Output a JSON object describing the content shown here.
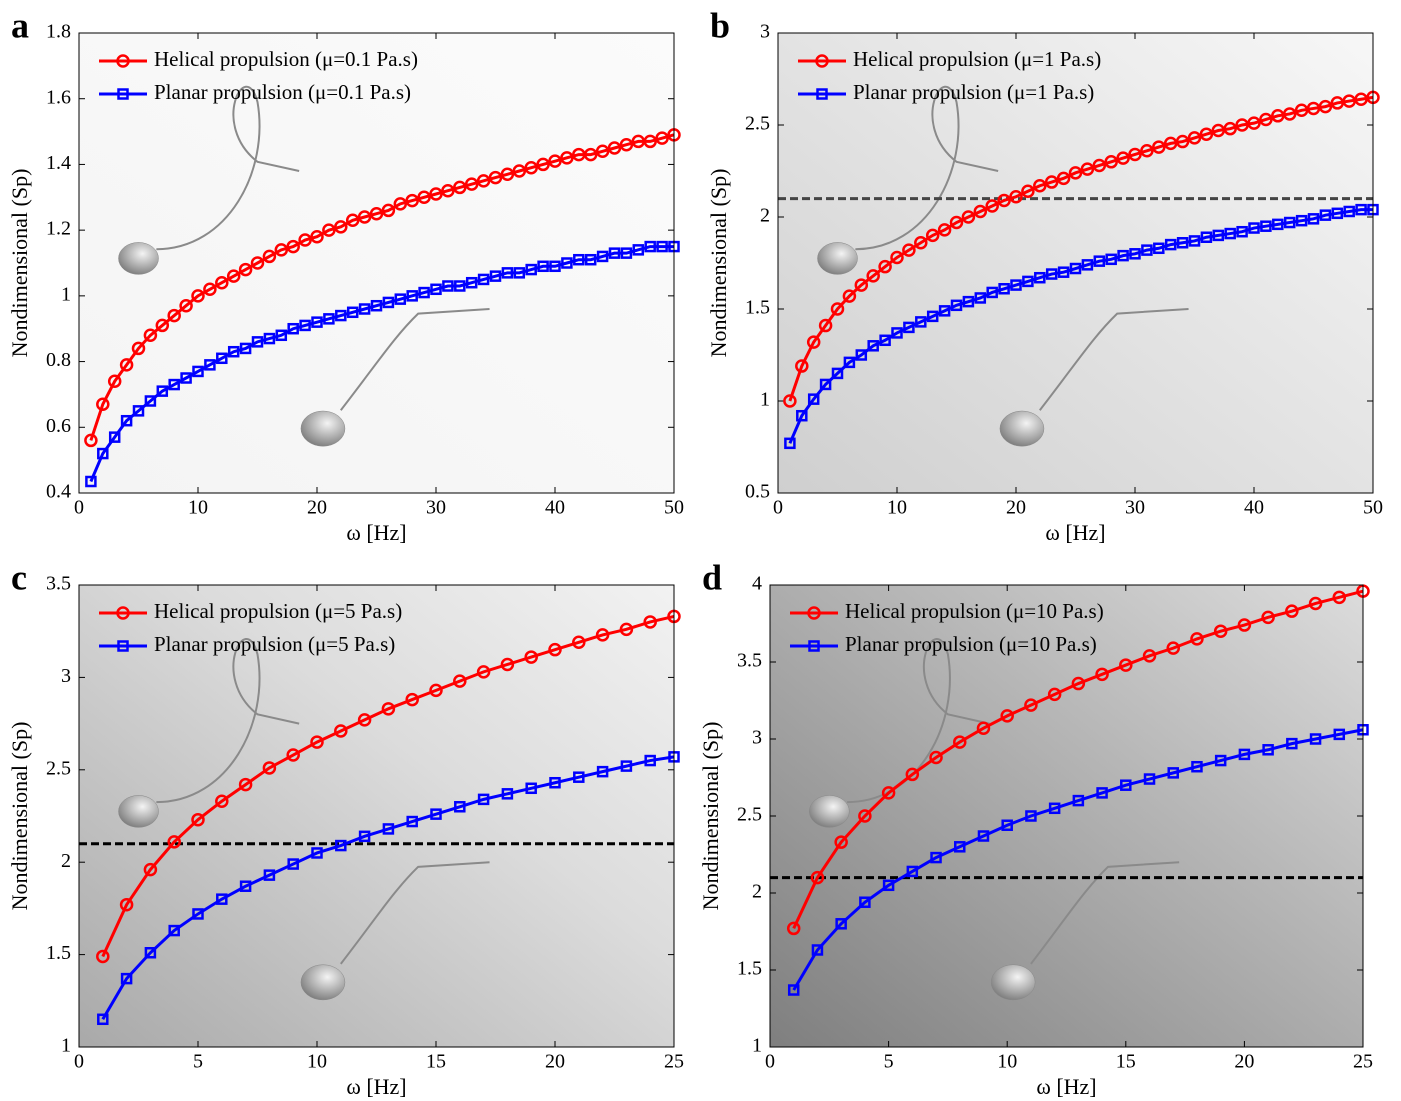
{
  "chart_data": [
    {
      "type": "line",
      "panel": "a",
      "xlabel": "ω [Hz]",
      "ylabel": "Nondimensional (Sp)",
      "xlim": [
        0,
        50
      ],
      "xticks": [
        0,
        10,
        20,
        30,
        40,
        50
      ],
      "ylim": [
        0.4,
        1.8
      ],
      "yticks": [
        0.4,
        0.6,
        0.8,
        1,
        1.2,
        1.4,
        1.6,
        1.8
      ],
      "x": [
        1,
        2,
        3,
        4,
        5,
        6,
        7,
        8,
        9,
        10,
        11,
        12,
        13,
        14,
        15,
        16,
        17,
        18,
        19,
        20,
        21,
        22,
        23,
        24,
        25,
        26,
        27,
        28,
        29,
        30,
        31,
        32,
        33,
        34,
        35,
        36,
        37,
        38,
        39,
        40,
        41,
        42,
        43,
        44,
        45,
        46,
        47,
        48,
        49,
        50
      ],
      "series": [
        {
          "name": "Helical propulsion (μ=0.1 Pa.s)",
          "color": "#ff0000",
          "marker": "circle",
          "values": [
            0.56,
            0.67,
            0.74,
            0.79,
            0.84,
            0.88,
            0.91,
            0.94,
            0.97,
            1.0,
            1.02,
            1.04,
            1.06,
            1.08,
            1.1,
            1.12,
            1.14,
            1.15,
            1.17,
            1.18,
            1.2,
            1.21,
            1.23,
            1.24,
            1.25,
            1.26,
            1.28,
            1.29,
            1.3,
            1.31,
            1.32,
            1.33,
            1.34,
            1.35,
            1.36,
            1.37,
            1.38,
            1.39,
            1.4,
            1.41,
            1.42,
            1.43,
            1.43,
            1.44,
            1.45,
            1.46,
            1.47,
            1.47,
            1.48,
            1.49
          ]
        },
        {
          "name": "Planar propulsion (μ=0.1 Pa.s)",
          "color": "#0000ff",
          "marker": "square",
          "values": [
            0.435,
            0.52,
            0.57,
            0.62,
            0.65,
            0.68,
            0.71,
            0.73,
            0.75,
            0.77,
            0.79,
            0.81,
            0.83,
            0.84,
            0.86,
            0.87,
            0.88,
            0.9,
            0.91,
            0.92,
            0.93,
            0.94,
            0.95,
            0.96,
            0.97,
            0.98,
            0.99,
            1.0,
            1.01,
            1.02,
            1.03,
            1.03,
            1.04,
            1.05,
            1.06,
            1.07,
            1.07,
            1.08,
            1.09,
            1.09,
            1.1,
            1.11,
            1.11,
            1.12,
            1.13,
            1.13,
            1.14,
            1.15,
            1.15,
            1.15
          ]
        }
      ]
    },
    {
      "type": "line",
      "panel": "b",
      "xlabel": "ω [Hz]",
      "ylabel": "Nondimensional (Sp)",
      "xlim": [
        0,
        50
      ],
      "xticks": [
        0,
        10,
        20,
        30,
        40,
        50
      ],
      "ylim": [
        0.5,
        3
      ],
      "yticks": [
        0.5,
        1,
        1.5,
        2,
        2.5,
        3
      ],
      "hline": 2.1,
      "x": [
        1,
        2,
        3,
        4,
        5,
        6,
        7,
        8,
        9,
        10,
        11,
        12,
        13,
        14,
        15,
        16,
        17,
        18,
        19,
        20,
        21,
        22,
        23,
        24,
        25,
        26,
        27,
        28,
        29,
        30,
        31,
        32,
        33,
        34,
        35,
        36,
        37,
        38,
        39,
        40,
        41,
        42,
        43,
        44,
        45,
        46,
        47,
        48,
        49,
        50
      ],
      "series": [
        {
          "name": "Helical propulsion (μ=1 Pa.s)",
          "color": "#ff0000",
          "marker": "circle",
          "values": [
            1.0,
            1.19,
            1.32,
            1.41,
            1.5,
            1.57,
            1.63,
            1.68,
            1.73,
            1.78,
            1.82,
            1.86,
            1.9,
            1.93,
            1.97,
            2.0,
            2.03,
            2.06,
            2.09,
            2.11,
            2.14,
            2.17,
            2.19,
            2.21,
            2.24,
            2.26,
            2.28,
            2.3,
            2.32,
            2.34,
            2.36,
            2.38,
            2.4,
            2.41,
            2.43,
            2.45,
            2.47,
            2.48,
            2.5,
            2.51,
            2.53,
            2.55,
            2.56,
            2.58,
            2.59,
            2.6,
            2.62,
            2.63,
            2.64,
            2.65
          ]
        },
        {
          "name": "Planar propulsion (μ=1 Pa.s)",
          "color": "#0000ff",
          "marker": "square",
          "values": [
            0.77,
            0.92,
            1.01,
            1.09,
            1.15,
            1.21,
            1.25,
            1.3,
            1.33,
            1.37,
            1.4,
            1.43,
            1.46,
            1.49,
            1.52,
            1.54,
            1.56,
            1.59,
            1.61,
            1.63,
            1.65,
            1.67,
            1.69,
            1.7,
            1.72,
            1.74,
            1.76,
            1.77,
            1.79,
            1.8,
            1.82,
            1.83,
            1.85,
            1.86,
            1.87,
            1.89,
            1.9,
            1.91,
            1.92,
            1.94,
            1.95,
            1.96,
            1.97,
            1.98,
            1.99,
            2.01,
            2.02,
            2.03,
            2.04,
            2.04
          ]
        }
      ]
    },
    {
      "type": "line",
      "panel": "c",
      "xlabel": "ω [Hz]",
      "ylabel": "Nondimensional (Sp)",
      "xlim": [
        0,
        25
      ],
      "xticks": [
        0,
        5,
        10,
        15,
        20,
        25
      ],
      "ylim": [
        1,
        3.5
      ],
      "yticks": [
        1,
        1.5,
        2,
        2.5,
        3,
        3.5
      ],
      "hline": 2.1,
      "x": [
        1,
        2,
        3,
        4,
        5,
        6,
        7,
        8,
        9,
        10,
        11,
        12,
        13,
        14,
        15,
        16,
        17,
        18,
        19,
        20,
        21,
        22,
        23,
        24,
        25
      ],
      "series": [
        {
          "name": "Helical propulsion (μ=5 Pa.s)",
          "color": "#ff0000",
          "marker": "circle",
          "values": [
            1.49,
            1.77,
            1.96,
            2.11,
            2.23,
            2.33,
            2.42,
            2.51,
            2.58,
            2.65,
            2.71,
            2.77,
            2.83,
            2.88,
            2.93,
            2.98,
            3.03,
            3.07,
            3.11,
            3.15,
            3.19,
            3.23,
            3.26,
            3.3,
            3.33
          ]
        },
        {
          "name": "Planar propulsion (μ=5 Pa.s)",
          "color": "#0000ff",
          "marker": "square",
          "values": [
            1.15,
            1.37,
            1.51,
            1.63,
            1.72,
            1.8,
            1.87,
            1.93,
            1.99,
            2.05,
            2.09,
            2.14,
            2.18,
            2.22,
            2.26,
            2.3,
            2.34,
            2.37,
            2.4,
            2.43,
            2.46,
            2.49,
            2.52,
            2.55,
            2.57
          ]
        }
      ]
    },
    {
      "type": "line",
      "panel": "d",
      "xlabel": "ω [Hz]",
      "ylabel": "Nondimensional (Sp)",
      "xlim": [
        0,
        25
      ],
      "xticks": [
        0,
        5,
        10,
        15,
        20,
        25
      ],
      "ylim": [
        1,
        4
      ],
      "yticks": [
        1,
        1.5,
        2,
        2.5,
        3,
        3.5,
        4
      ],
      "hline": 2.1,
      "x": [
        1,
        2,
        3,
        4,
        5,
        6,
        7,
        8,
        9,
        10,
        11,
        12,
        13,
        14,
        15,
        16,
        17,
        18,
        19,
        20,
        21,
        22,
        23,
        24,
        25
      ],
      "series": [
        {
          "name": "Helical propulsion (μ=10 Pa.s)",
          "color": "#ff0000",
          "marker": "circle",
          "values": [
            1.77,
            2.1,
            2.33,
            2.5,
            2.65,
            2.77,
            2.88,
            2.98,
            3.07,
            3.15,
            3.22,
            3.29,
            3.36,
            3.42,
            3.48,
            3.54,
            3.59,
            3.65,
            3.7,
            3.74,
            3.79,
            3.83,
            3.88,
            3.92,
            3.96
          ]
        },
        {
          "name": "Planar propulsion (μ=10 Pa.s)",
          "color": "#0000ff",
          "marker": "square",
          "values": [
            1.37,
            1.63,
            1.8,
            1.94,
            2.05,
            2.14,
            2.23,
            2.3,
            2.37,
            2.44,
            2.5,
            2.55,
            2.6,
            2.65,
            2.7,
            2.74,
            2.78,
            2.82,
            2.86,
            2.9,
            2.93,
            2.97,
            3.0,
            3.03,
            3.06
          ]
        }
      ]
    }
  ]
}
